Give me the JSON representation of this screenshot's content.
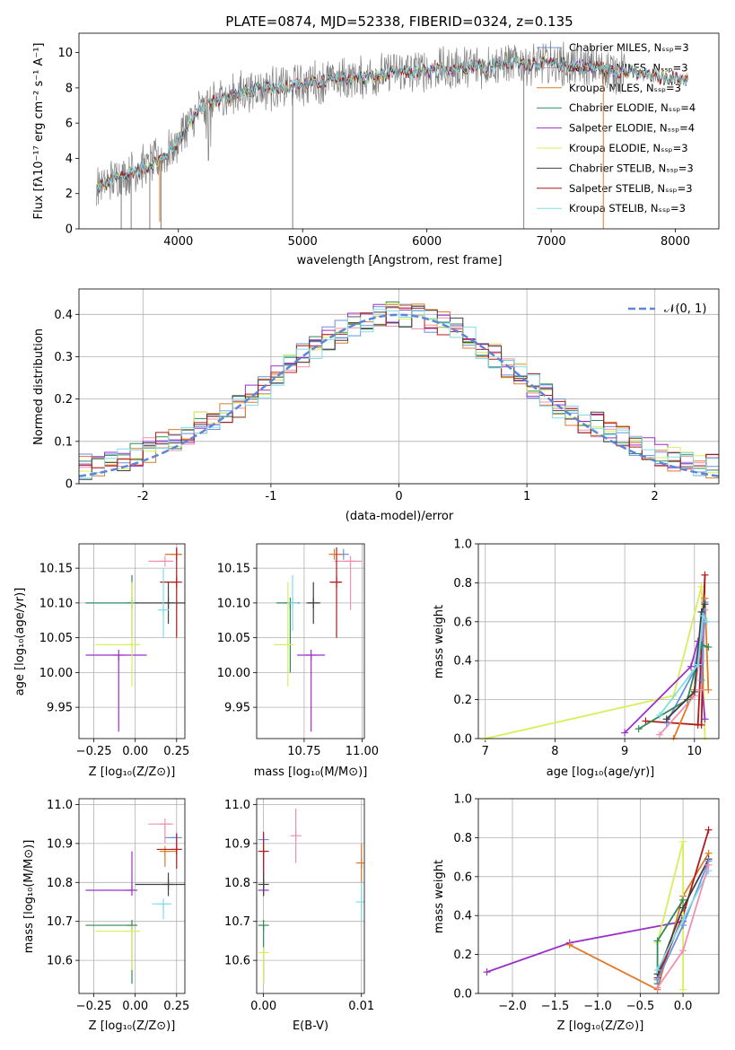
{
  "chart_data": [
    {
      "id": "spectrum",
      "type": "line",
      "title": "PLATE=0874, MJD=52338, FIBERID=0324, z=0.135",
      "xlabel": "wavelength [Angstrom, rest frame]",
      "ylabel": "Flux [fλ10⁻¹⁷ erg cm⁻² s⁻¹ A⁻¹]",
      "xlim": [
        3200,
        8350
      ],
      "ylim": [
        0,
        11.1
      ],
      "xticks": [
        4000,
        5000,
        6000,
        7000,
        8000
      ],
      "yticks": [
        0,
        2,
        4,
        6,
        8,
        10
      ],
      "legend_position": "top-right",
      "legend": [
        {
          "label": "Chabrier MILES, Nₛₛₚ=3",
          "color": "#6b8fe0"
        },
        {
          "label": "Salpeter MILES, Nₛₛₚ=3",
          "color": "#f08fb0"
        },
        {
          "label": "Kroupa MILES, Nₛₛₚ=3",
          "color": "#e07a2a"
        },
        {
          "label": "Chabrier ELODIE, Nₛₛₚ=4",
          "color": "#2e8b57"
        },
        {
          "label": "Salpeter ELODIE, Nₛₛₚ=4",
          "color": "#9b30c8"
        },
        {
          "label": "Kroupa ELODIE, Nₛₛₚ=3",
          "color": "#d8ee5a"
        },
        {
          "label": "Chabrier STELIB, Nₛₛₚ=3",
          "color": "#404040"
        },
        {
          "label": "Salpeter STELIB, Nₛₛₚ=3",
          "color": "#b01c1c"
        },
        {
          "label": "Kroupa STELIB, Nₛₛₚ=3",
          "color": "#7fdde8"
        }
      ],
      "continuum_x": [
        3340,
        3500,
        3700,
        3850,
        3950,
        4050,
        4200,
        4350,
        4500,
        4700,
        4900,
        5100,
        5300,
        5500,
        5700,
        5900,
        6100,
        6300,
        6500,
        6700,
        6900,
        7100,
        7300,
        7500,
        7700,
        7900,
        8100
      ],
      "continuum_y": [
        2.3,
        2.9,
        3.4,
        3.9,
        4.5,
        5.6,
        7.0,
        7.4,
        7.7,
        8.0,
        8.1,
        8.3,
        8.5,
        8.6,
        8.8,
        8.9,
        9.0,
        9.2,
        9.3,
        9.4,
        9.4,
        9.3,
        9.2,
        9.0,
        8.8,
        8.6,
        8.5
      ]
    },
    {
      "id": "residuals",
      "type": "histogram",
      "xlabel": "(data-model)/error",
      "ylabel": "Normed distribution",
      "xlim": [
        -2.5,
        2.5
      ],
      "ylim": [
        0,
        0.46
      ],
      "xticks": [
        -2,
        -1,
        0,
        1,
        2
      ],
      "yticks": [
        0.0,
        0.1,
        0.2,
        0.3,
        0.4
      ],
      "grid": true,
      "legend_position": "top-right",
      "reference_label": "𝒩(0, 1)",
      "reference_color": "#5b86d9"
    },
    {
      "id": "age_vs_z",
      "type": "scatter",
      "xlabel": "Z [log₁₀(Z/Z⊙)]",
      "ylabel": "age  [log₁₀(age/yr)]",
      "xlim": [
        -0.34,
        0.3
      ],
      "ylim": [
        9.905,
        10.185
      ],
      "xticks": [
        -0.25,
        0.0,
        0.25
      ],
      "xticklabels": [
        "−0.25",
        "0.00",
        "0.25"
      ],
      "yticks": [
        9.95,
        10.0,
        10.05,
        10.1,
        10.15
      ],
      "yticklabels": [
        "9.95",
        "10.00",
        "10.05",
        "10.10",
        "10.15"
      ],
      "grid": true,
      "points": [
        {
          "color": "#6b8fe0",
          "x": 0.25,
          "xerr": [
            0.07,
            0.0
          ],
          "y": 10.17,
          "yerr": [
            0.0,
            0.0
          ]
        },
        {
          "color": "#f08fb0",
          "x": 0.18,
          "xerr": [
            0.1,
            0.05
          ],
          "y": 10.16,
          "yerr": [
            0.0,
            0.0
          ]
        },
        {
          "color": "#e07a2a",
          "x": 0.25,
          "xerr": [
            0.07,
            0.0
          ],
          "y": 10.17,
          "yerr": [
            0.0,
            0.0
          ]
        },
        {
          "color": "#2e8b57",
          "x": -0.02,
          "xerr": [
            0.28,
            0.0
          ],
          "y": 10.1,
          "yerr": [
            0.05,
            0.04
          ]
        },
        {
          "color": "#9b30c8",
          "x": -0.1,
          "xerr": [
            0.2,
            0.17
          ],
          "y": 10.025,
          "yerr": [
            0.11,
            0.0
          ]
        },
        {
          "color": "#d8ee5a",
          "x": -0.02,
          "xerr": [
            0.22,
            0.05
          ],
          "y": 10.04,
          "yerr": [
            0.06,
            0.09
          ]
        },
        {
          "color": "#404040",
          "x": 0.2,
          "xerr": [
            0.2,
            0.1
          ],
          "y": 10.1,
          "yerr": [
            0.03,
            0.03
          ]
        },
        {
          "color": "#b01c1c",
          "x": 0.25,
          "xerr": [
            0.1,
            0.0
          ],
          "y": 10.13,
          "yerr": [
            0.08,
            0.05
          ]
        },
        {
          "color": "#7fdde8",
          "x": 0.17,
          "xerr": [
            0.02,
            0.02
          ],
          "y": 10.09,
          "yerr": [
            0.04,
            0.06
          ]
        }
      ]
    },
    {
      "id": "age_vs_mass",
      "type": "scatter",
      "xlabel": "mass [log₁₀(M/M⊙)]",
      "ylabel": "",
      "xlim": [
        10.545,
        11.01
      ],
      "ylim": [
        9.905,
        10.185
      ],
      "xticks": [
        10.75,
        11.0
      ],
      "xticklabels": [
        "10.75",
        "11.00"
      ],
      "yticks": [
        9.95,
        10.0,
        10.05,
        10.1,
        10.15
      ],
      "yticklabels": [
        "9.95",
        "10.00",
        "10.05",
        "10.10",
        "10.15"
      ],
      "grid": true,
      "points": [
        {
          "color": "#6b8fe0",
          "x": 10.92,
          "xerr": [
            0.02,
            0.0
          ],
          "y": 10.17,
          "yerr": [
            0.0,
            0.0
          ]
        },
        {
          "color": "#f08fb0",
          "x": 10.95,
          "xerr": [
            0.07,
            0.05
          ],
          "y": 10.16,
          "yerr": [
            0.07,
            0.0
          ]
        },
        {
          "color": "#e07a2a",
          "x": 10.88,
          "xerr": [
            0.0,
            0.04
          ],
          "y": 10.17,
          "yerr": [
            0.0,
            0.0
          ]
        },
        {
          "color": "#2e8b57",
          "x": 10.69,
          "xerr": [
            0.06,
            0.04
          ],
          "y": 10.1,
          "yerr": [
            0.1,
            0.0
          ]
        },
        {
          "color": "#9b30c8",
          "x": 10.78,
          "xerr": [
            0.06,
            0.06
          ],
          "y": 10.025,
          "yerr": [
            0.11,
            0.0
          ]
        },
        {
          "color": "#d8ee5a",
          "x": 10.68,
          "xerr": [
            0.06,
            0.0
          ],
          "y": 10.04,
          "yerr": [
            0.06,
            0.09
          ]
        },
        {
          "color": "#404040",
          "x": 10.79,
          "xerr": [
            0.03,
            0.03
          ],
          "y": 10.1,
          "yerr": [
            0.03,
            0.03
          ]
        },
        {
          "color": "#b01c1c",
          "x": 10.89,
          "xerr": [
            0.03,
            0.02
          ],
          "y": 10.13,
          "yerr": [
            0.08,
            0.05
          ]
        },
        {
          "color": "#7fdde8",
          "x": 10.7,
          "xerr": [
            0.0,
            0.0
          ],
          "y": 10.1,
          "yerr": [
            0.04,
            0.04
          ]
        }
      ]
    },
    {
      "id": "mass_weight_vs_age",
      "type": "line",
      "xlabel": "age  [log₁₀(age/yr)]",
      "ylabel": "mass weight",
      "xlim": [
        6.9,
        10.35
      ],
      "ylim": [
        0.0,
        1.0
      ],
      "xticks": [
        7,
        8,
        9,
        10
      ],
      "yticks": [
        0.0,
        0.2,
        0.4,
        0.6,
        0.8,
        1.0
      ],
      "yticklabels": [
        "0.0",
        "0.2",
        "0.4",
        "0.6",
        "0.8",
        "1.0"
      ],
      "grid": true,
      "series": [
        {
          "color": "#d8ee5a",
          "x": [
            7.0,
            9.7,
            10.1,
            10.15
          ],
          "y": [
            0.0,
            0.22,
            0.78,
            0.0
          ]
        },
        {
          "color": "#9b30c8",
          "x": [
            9.0,
            9.95,
            10.05,
            10.15
          ],
          "y": [
            0.03,
            0.37,
            0.5,
            0.1
          ]
        },
        {
          "color": "#b01c1c",
          "x": [
            9.3,
            10.1,
            10.15,
            10.05
          ],
          "y": [
            0.09,
            0.07,
            0.84,
            0.07
          ]
        },
        {
          "color": "#e07a2a",
          "x": [
            9.7,
            10.0,
            10.15,
            10.2
          ],
          "y": [
            0.0,
            0.25,
            0.72,
            0.25
          ]
        },
        {
          "color": "#f08fb0",
          "x": [
            9.5,
            10.0,
            10.15,
            10.1
          ],
          "y": [
            0.02,
            0.22,
            0.66,
            0.25
          ]
        },
        {
          "color": "#6b8fe0",
          "x": [
            9.6,
            10.0,
            10.15,
            10.1
          ],
          "y": [
            0.08,
            0.35,
            0.7,
            0.3
          ]
        },
        {
          "color": "#2e8b57",
          "x": [
            9.2,
            9.9,
            10.1,
            10.2
          ],
          "y": [
            0.05,
            0.2,
            0.48,
            0.47
          ]
        },
        {
          "color": "#404040",
          "x": [
            9.6,
            10.0,
            10.1,
            10.15
          ],
          "y": [
            0.1,
            0.24,
            0.65,
            0.69
          ]
        },
        {
          "color": "#7fdde8",
          "x": [
            9.5,
            10.05,
            10.12,
            10.18
          ],
          "y": [
            0.12,
            0.38,
            0.63,
            0.6
          ]
        }
      ]
    },
    {
      "id": "mass_vs_z",
      "type": "scatter",
      "xlabel": "Z [log₁₀(Z/Z⊙)]",
      "ylabel": "mass [log₁₀(M/M⊙)]",
      "xlim": [
        -0.34,
        0.3
      ],
      "ylim": [
        10.515,
        11.015
      ],
      "xticks": [
        -0.25,
        0.0,
        0.25
      ],
      "xticklabels": [
        "−0.25",
        "0.00",
        "0.25"
      ],
      "yticks": [
        10.6,
        10.7,
        10.8,
        10.9,
        11.0
      ],
      "yticklabels": [
        "10.6",
        "10.7",
        "10.8",
        "10.9",
        "11.0"
      ],
      "grid": true,
      "points": [
        {
          "color": "#6b8fe0",
          "x": 0.25,
          "xerr": [
            0.07,
            0.0
          ],
          "y": 10.915,
          "yerr": [
            0.0,
            0.0
          ]
        },
        {
          "color": "#f08fb0",
          "x": 0.18,
          "xerr": [
            0.1,
            0.05
          ],
          "y": 10.95,
          "yerr": [
            0.05,
            0.0
          ]
        },
        {
          "color": "#e07a2a",
          "x": 0.18,
          "xerr": [
            0.0,
            0.07
          ],
          "y": 10.88,
          "yerr": [
            0.04,
            0.0
          ]
        },
        {
          "color": "#2e8b57",
          "x": -0.02,
          "xerr": [
            0.28,
            0.0
          ],
          "y": 10.69,
          "yerr": [
            0.15,
            0.0
          ]
        },
        {
          "color": "#9b30c8",
          "x": -0.02,
          "xerr": [
            0.28,
            0.0
          ],
          "y": 10.78,
          "yerr": [
            0.0,
            0.1
          ]
        },
        {
          "color": "#d8ee5a",
          "x": -0.02,
          "xerr": [
            0.22,
            0.05
          ],
          "y": 10.675,
          "yerr": [
            0.1,
            0.0
          ]
        },
        {
          "color": "#404040",
          "x": 0.2,
          "xerr": [
            0.2,
            0.1
          ],
          "y": 10.795,
          "yerr": [
            0.03,
            0.03
          ]
        },
        {
          "color": "#b01c1c",
          "x": 0.25,
          "xerr": [
            0.12,
            0.0
          ],
          "y": 10.885,
          "yerr": [
            0.05,
            0.04
          ]
        },
        {
          "color": "#7fdde8",
          "x": 0.17,
          "xerr": [
            0.07,
            0.05
          ],
          "y": 10.745,
          "yerr": [
            0.04,
            0.0
          ]
        }
      ]
    },
    {
      "id": "mass_vs_ebv",
      "type": "scatter",
      "xlabel": "E(B-V)",
      "ylabel": "",
      "xlim": [
        -0.0007,
        0.0103
      ],
      "ylim": [
        10.515,
        11.015
      ],
      "xticks": [
        0.0,
        0.01
      ],
      "xticklabels": [
        "0.00",
        "0.01"
      ],
      "yticks": [
        10.6,
        10.7,
        10.8,
        10.9,
        11.0
      ],
      "yticklabels": [
        "10.6",
        "10.7",
        "10.8",
        "10.9",
        "11.0"
      ],
      "grid": true,
      "points": [
        {
          "color": "#6b8fe0",
          "x": 0.0,
          "xerr": [
            0.0,
            0.0
          ],
          "y": 10.91,
          "yerr": [
            0.0,
            0.0
          ]
        },
        {
          "color": "#f08fb0",
          "x": 0.0033,
          "xerr": [
            0.0,
            0.0
          ],
          "y": 10.92,
          "yerr": [
            0.07,
            0.07
          ]
        },
        {
          "color": "#e07a2a",
          "x": 0.01,
          "xerr": [
            0.0,
            0.0
          ],
          "y": 10.85,
          "yerr": [
            0.05,
            0.05
          ]
        },
        {
          "color": "#2e8b57",
          "x": 0.0,
          "xerr": [
            0.0,
            0.0
          ],
          "y": 10.69,
          "yerr": [
            0.15,
            0.0
          ]
        },
        {
          "color": "#9b30c8",
          "x": 0.0,
          "xerr": [
            0.0,
            0.0
          ],
          "y": 10.78,
          "yerr": [
            0.0,
            0.1
          ]
        },
        {
          "color": "#d8ee5a",
          "x": 0.0,
          "xerr": [
            0.0,
            0.0
          ],
          "y": 10.62,
          "yerr": [
            0.08,
            0.0
          ]
        },
        {
          "color": "#404040",
          "x": 0.0,
          "xerr": [
            0.0,
            0.0
          ],
          "y": 10.795,
          "yerr": [
            0.03,
            0.03
          ]
        },
        {
          "color": "#b01c1c",
          "x": 0.0,
          "xerr": [
            0.0,
            0.0
          ],
          "y": 10.88,
          "yerr": [
            0.06,
            0.05
          ]
        },
        {
          "color": "#7fdde8",
          "x": 0.01,
          "xerr": [
            0.0,
            0.0
          ],
          "y": 10.75,
          "yerr": [
            0.05,
            0.05
          ]
        }
      ]
    },
    {
      "id": "mass_weight_vs_z",
      "type": "line",
      "xlabel": "Z [log₁₀(Z/Z⊙)]",
      "ylabel": "mass weight",
      "xlim": [
        -2.4,
        0.42
      ],
      "ylim": [
        0.0,
        1.0
      ],
      "xticks": [
        -2.0,
        -1.5,
        -1.0,
        -0.5,
        0.0
      ],
      "xticklabels": [
        "−2.0",
        "−1.5",
        "−1.0",
        "−0.5",
        "0.0"
      ],
      "yticks": [
        0.0,
        0.2,
        0.4,
        0.6,
        0.8,
        1.0
      ],
      "yticklabels": [
        "0.0",
        "0.2",
        "0.4",
        "0.6",
        "0.8",
        "1.0"
      ],
      "grid": true,
      "series": [
        {
          "color": "#9b30c8",
          "x": [
            -2.3,
            -1.33,
            0.0
          ],
          "y": [
            0.11,
            0.26,
            0.37
          ]
        },
        {
          "color": "#e07a2a",
          "x": [
            -1.33,
            -0.3,
            0.0,
            0.3
          ],
          "y": [
            0.25,
            0.02,
            0.5,
            0.72
          ]
        },
        {
          "color": "#b01c1c",
          "x": [
            -0.3,
            0.0,
            0.3
          ],
          "y": [
            0.08,
            0.4,
            0.84
          ]
        },
        {
          "color": "#d8ee5a",
          "x": [
            -0.3,
            0.0,
            0.0
          ],
          "y": [
            0.26,
            0.78,
            0.02
          ]
        },
        {
          "color": "#2e8b57",
          "x": [
            -0.3,
            -0.3,
            0.0
          ],
          "y": [
            0.05,
            0.27,
            0.48
          ]
        },
        {
          "color": "#404040",
          "x": [
            -0.3,
            0.0,
            0.3
          ],
          "y": [
            0.1,
            0.44,
            0.69
          ]
        },
        {
          "color": "#6b8fe0",
          "x": [
            -0.3,
            0.0,
            0.3
          ],
          "y": [
            0.07,
            0.35,
            0.68
          ]
        },
        {
          "color": "#7fdde8",
          "x": [
            -0.3,
            0.0,
            0.3
          ],
          "y": [
            0.12,
            0.38,
            0.63
          ]
        },
        {
          "color": "#f08fb0",
          "x": [
            -0.3,
            0.0,
            0.3
          ],
          "y": [
            0.03,
            0.22,
            0.66
          ]
        }
      ]
    }
  ]
}
